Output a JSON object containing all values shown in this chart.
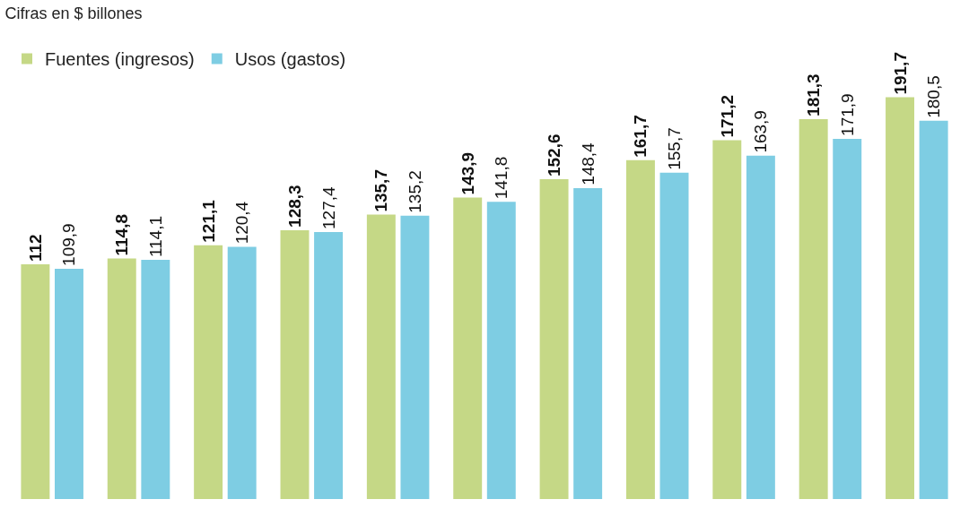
{
  "chart_data": {
    "type": "bar",
    "title": "Cifras en $ billones",
    "categories": [
      null,
      null,
      null,
      null,
      null,
      null,
      null,
      null,
      null,
      null,
      null
    ],
    "series": [
      {
        "name": "Fuentes (ingresos)",
        "color": "#c5d886",
        "values": [
          112,
          114.8,
          121.1,
          128.3,
          135.7,
          143.9,
          152.6,
          161.7,
          171.2,
          181.3,
          191.7
        ],
        "value_labels": [
          "112",
          "114,8",
          "121,1",
          "128,3",
          "135,7",
          "143,9",
          "152,6",
          "161,7",
          "171,2",
          "181,3",
          "191,7"
        ]
      },
      {
        "name": "Usos (gastos)",
        "color": "#7ecde3",
        "values": [
          109.9,
          114.1,
          120.4,
          127.4,
          135.2,
          141.8,
          148.4,
          155.7,
          163.9,
          171.9,
          180.5
        ],
        "value_labels": [
          "109,9",
          "114,1",
          "120,4",
          "127,4",
          "135,2",
          "141,8",
          "148,4",
          "155,7",
          "163,9",
          "171,9",
          "180,5"
        ]
      }
    ],
    "legend": "top left"
  }
}
